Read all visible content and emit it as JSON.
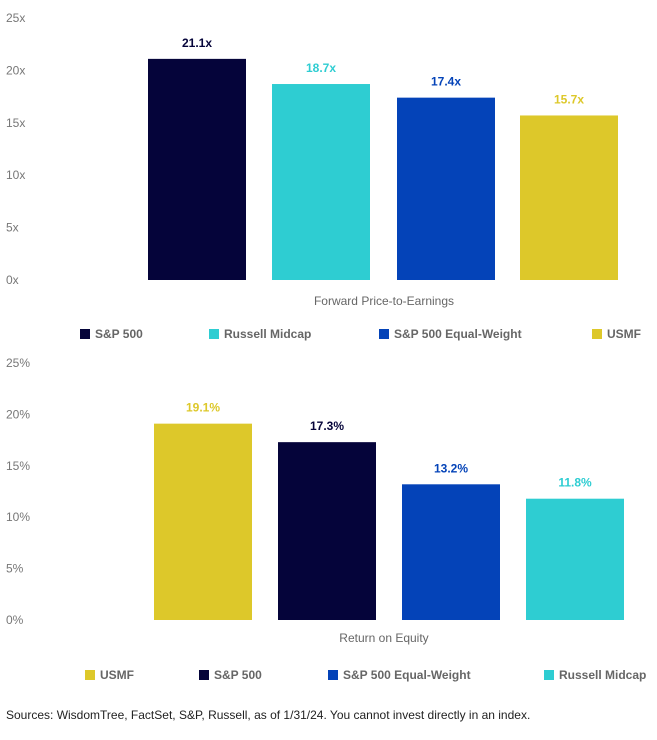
{
  "chart_data": [
    {
      "type": "bar",
      "xlabel": "Forward Price-to-Earnings",
      "ylim": [
        0,
        25
      ],
      "yticks": [
        "0x",
        "5x",
        "10x",
        "15x",
        "20x",
        "25x"
      ],
      "categories": [
        "S&P 500",
        "Russell Midcap",
        "S&P 500 Equal-Weight",
        "USMF"
      ],
      "values": [
        21.1,
        18.7,
        17.4,
        15.7
      ],
      "data_labels": [
        "21.1x",
        "18.7x",
        "17.4x",
        "15.7x"
      ],
      "colors": [
        "#05043a",
        "#2ecdd2",
        "#0443b8",
        "#ddc82a"
      ],
      "label_colors": [
        "#05043a",
        "#2ecdd2",
        "#0443b8",
        "#ddc82a"
      ],
      "legend": {
        "placement": "bottom",
        "items": [
          {
            "label": "S&P 500",
            "color": "#05043a"
          },
          {
            "label": "Russell Midcap",
            "color": "#2ecdd2"
          },
          {
            "label": "S&P 500 Equal-Weight",
            "color": "#0443b8"
          },
          {
            "label": "USMF",
            "color": "#ddc82a"
          }
        ]
      },
      "grid": false
    },
    {
      "type": "bar",
      "xlabel": "Return on Equity",
      "ylim": [
        0,
        25
      ],
      "yticks": [
        "0%",
        "5%",
        "10%",
        "15%",
        "20%",
        "25%"
      ],
      "categories": [
        "USMF",
        "S&P 500",
        "S&P 500 Equal-Weight",
        "Russell Midcap"
      ],
      "values": [
        19.1,
        17.3,
        13.2,
        11.8
      ],
      "data_labels": [
        "19.1%",
        "17.3%",
        "13.2%",
        "11.8%"
      ],
      "colors": [
        "#ddc82a",
        "#05043a",
        "#0443b8",
        "#2ecdd2"
      ],
      "label_colors": [
        "#ddc82a",
        "#05043a",
        "#0443b8",
        "#2ecdd2"
      ],
      "legend": {
        "placement": "bottom",
        "items": [
          {
            "label": "USMF",
            "color": "#ddc82a"
          },
          {
            "label": "S&P 500",
            "color": "#05043a"
          },
          {
            "label": "S&P 500 Equal-Weight",
            "color": "#0443b8"
          },
          {
            "label": "Russell Midcap",
            "color": "#2ecdd2"
          }
        ]
      },
      "grid": false
    }
  ],
  "footer": {
    "source": "Sources: WisdomTree, FactSet, S&P, Russell, as of 1/31/24. You cannot invest directly in an index."
  }
}
